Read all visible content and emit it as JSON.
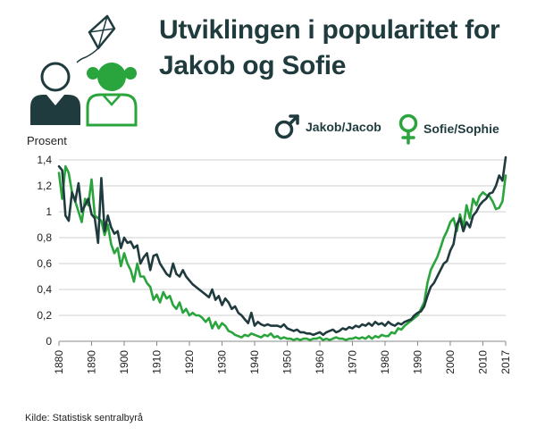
{
  "title_line1": "Utviklingen i popularitet for",
  "title_line2": "Jakob og Sofie",
  "source": "Kilde: Statistisk sentralbyrå",
  "icons": [
    "kite-icon",
    "boy-icon",
    "girl-icon",
    "male-symbol-icon",
    "female-symbol-icon"
  ],
  "colors": {
    "jakob": "#1f3b3e",
    "sofie": "#2aa43c",
    "grid": "#cfcfcf",
    "title": "#1f3b3e"
  },
  "chart_data": {
    "type": "line",
    "title": "Utviklingen i popularitet for Jakob og Sofie",
    "xlabel": "",
    "ylabel": "Prosent",
    "xlim": [
      1880,
      2017
    ],
    "ylim": [
      0,
      1.4
    ],
    "x_ticks": [
      "1880",
      "1890",
      "1900",
      "1910",
      "1920",
      "1930",
      "1940",
      "1950",
      "1960",
      "1970",
      "1980",
      "1990",
      "2000",
      "2010",
      "2017"
    ],
    "y_ticks": [
      "0",
      "0,2",
      "0,4",
      "0,6",
      "0,8",
      "1",
      "1,2",
      "1,4"
    ],
    "grid": true,
    "legend": "top-right",
    "series": [
      {
        "name": "Jakob/Jacob",
        "points": [
          [
            1880,
            1.35
          ],
          [
            1881,
            1.32
          ],
          [
            1882,
            0.97
          ],
          [
            1883,
            0.93
          ],
          [
            1884,
            1.15
          ],
          [
            1885,
            1.08
          ],
          [
            1886,
            1.22
          ],
          [
            1887,
            1.0
          ],
          [
            1888,
            1.05
          ],
          [
            1889,
            1.1
          ],
          [
            1890,
            0.98
          ],
          [
            1891,
            0.95
          ],
          [
            1892,
            0.76
          ],
          [
            1893,
            1.26
          ],
          [
            1894,
            0.85
          ],
          [
            1895,
            0.97
          ],
          [
            1896,
            0.88
          ],
          [
            1897,
            0.83
          ],
          [
            1898,
            0.85
          ],
          [
            1899,
            0.72
          ],
          [
            1900,
            0.8
          ],
          [
            1901,
            0.76
          ],
          [
            1902,
            0.77
          ],
          [
            1903,
            0.72
          ],
          [
            1904,
            0.74
          ],
          [
            1905,
            0.6
          ],
          [
            1906,
            0.65
          ],
          [
            1907,
            0.68
          ],
          [
            1908,
            0.55
          ],
          [
            1909,
            0.66
          ],
          [
            1910,
            0.67
          ],
          [
            1911,
            0.6
          ],
          [
            1912,
            0.56
          ],
          [
            1913,
            0.52
          ],
          [
            1914,
            0.5
          ],
          [
            1915,
            0.6
          ],
          [
            1916,
            0.52
          ],
          [
            1917,
            0.5
          ],
          [
            1918,
            0.55
          ],
          [
            1919,
            0.5
          ],
          [
            1920,
            0.47
          ],
          [
            1921,
            0.44
          ],
          [
            1922,
            0.42
          ],
          [
            1923,
            0.4
          ],
          [
            1924,
            0.38
          ],
          [
            1925,
            0.36
          ],
          [
            1926,
            0.34
          ],
          [
            1927,
            0.4
          ],
          [
            1928,
            0.32
          ],
          [
            1929,
            0.35
          ],
          [
            1930,
            0.28
          ],
          [
            1931,
            0.33
          ],
          [
            1932,
            0.3
          ],
          [
            1933,
            0.25
          ],
          [
            1934,
            0.27
          ],
          [
            1935,
            0.22
          ],
          [
            1936,
            0.2
          ],
          [
            1937,
            0.17
          ],
          [
            1938,
            0.14
          ],
          [
            1939,
            0.22
          ],
          [
            1940,
            0.12
          ],
          [
            1941,
            0.15
          ],
          [
            1942,
            0.13
          ],
          [
            1943,
            0.12
          ],
          [
            1944,
            0.13
          ],
          [
            1945,
            0.12
          ],
          [
            1946,
            0.12
          ],
          [
            1947,
            0.12
          ],
          [
            1948,
            0.11
          ],
          [
            1949,
            0.13
          ],
          [
            1950,
            0.1
          ],
          [
            1951,
            0.09
          ],
          [
            1952,
            0.08
          ],
          [
            1953,
            0.09
          ],
          [
            1954,
            0.07
          ],
          [
            1955,
            0.07
          ],
          [
            1956,
            0.06
          ],
          [
            1957,
            0.06
          ],
          [
            1958,
            0.05
          ],
          [
            1959,
            0.06
          ],
          [
            1960,
            0.07
          ],
          [
            1961,
            0.05
          ],
          [
            1962,
            0.07
          ],
          [
            1963,
            0.08
          ],
          [
            1964,
            0.09
          ],
          [
            1965,
            0.07
          ],
          [
            1966,
            0.08
          ],
          [
            1967,
            0.1
          ],
          [
            1968,
            0.09
          ],
          [
            1969,
            0.11
          ],
          [
            1970,
            0.1
          ],
          [
            1971,
            0.12
          ],
          [
            1972,
            0.11
          ],
          [
            1973,
            0.13
          ],
          [
            1974,
            0.12
          ],
          [
            1975,
            0.14
          ],
          [
            1976,
            0.12
          ],
          [
            1977,
            0.15
          ],
          [
            1978,
            0.13
          ],
          [
            1979,
            0.14
          ],
          [
            1980,
            0.12
          ],
          [
            1981,
            0.15
          ],
          [
            1982,
            0.13
          ],
          [
            1983,
            0.12
          ],
          [
            1984,
            0.14
          ],
          [
            1985,
            0.13
          ],
          [
            1986,
            0.15
          ],
          [
            1987,
            0.16
          ],
          [
            1988,
            0.17
          ],
          [
            1989,
            0.2
          ],
          [
            1990,
            0.22
          ],
          [
            1991,
            0.23
          ],
          [
            1992,
            0.27
          ],
          [
            1993,
            0.35
          ],
          [
            1994,
            0.42
          ],
          [
            1995,
            0.45
          ],
          [
            1996,
            0.5
          ],
          [
            1997,
            0.55
          ],
          [
            1998,
            0.6
          ],
          [
            1999,
            0.62
          ],
          [
            2000,
            0.7
          ],
          [
            2001,
            0.75
          ],
          [
            2002,
            0.9
          ],
          [
            2003,
            0.95
          ],
          [
            2004,
            0.85
          ],
          [
            2005,
            0.92
          ],
          [
            2006,
            0.88
          ],
          [
            2007,
            0.97
          ],
          [
            2008,
            1.0
          ],
          [
            2009,
            1.05
          ],
          [
            2010,
            1.08
          ],
          [
            2011,
            1.1
          ],
          [
            2012,
            1.14
          ],
          [
            2013,
            1.15
          ],
          [
            2014,
            1.2
          ],
          [
            2015,
            1.28
          ],
          [
            2016,
            1.24
          ],
          [
            2017,
            1.42
          ]
        ]
      },
      {
        "name": "Sofie/Sophie",
        "points": [
          [
            1880,
            1.3
          ],
          [
            1881,
            1.1
          ],
          [
            1882,
            1.35
          ],
          [
            1883,
            1.3
          ],
          [
            1884,
            1.15
          ],
          [
            1885,
            1.08
          ],
          [
            1886,
            1.0
          ],
          [
            1887,
            0.92
          ],
          [
            1888,
            1.1
          ],
          [
            1889,
            1.05
          ],
          [
            1890,
            1.25
          ],
          [
            1891,
            0.97
          ],
          [
            1892,
            0.95
          ],
          [
            1893,
            0.93
          ],
          [
            1894,
            0.82
          ],
          [
            1895,
            0.9
          ],
          [
            1896,
            0.75
          ],
          [
            1897,
            0.68
          ],
          [
            1898,
            0.72
          ],
          [
            1899,
            0.58
          ],
          [
            1900,
            0.68
          ],
          [
            1901,
            0.6
          ],
          [
            1902,
            0.55
          ],
          [
            1903,
            0.46
          ],
          [
            1904,
            0.6
          ],
          [
            1905,
            0.5
          ],
          [
            1906,
            0.5
          ],
          [
            1907,
            0.45
          ],
          [
            1908,
            0.42
          ],
          [
            1909,
            0.32
          ],
          [
            1910,
            0.36
          ],
          [
            1911,
            0.3
          ],
          [
            1912,
            0.38
          ],
          [
            1913,
            0.33
          ],
          [
            1914,
            0.35
          ],
          [
            1915,
            0.28
          ],
          [
            1916,
            0.25
          ],
          [
            1917,
            0.3
          ],
          [
            1918,
            0.22
          ],
          [
            1919,
            0.25
          ],
          [
            1920,
            0.2
          ],
          [
            1921,
            0.22
          ],
          [
            1922,
            0.2
          ],
          [
            1923,
            0.2
          ],
          [
            1924,
            0.18
          ],
          [
            1925,
            0.15
          ],
          [
            1926,
            0.18
          ],
          [
            1927,
            0.1
          ],
          [
            1928,
            0.15
          ],
          [
            1929,
            0.1
          ],
          [
            1930,
            0.14
          ],
          [
            1931,
            0.12
          ],
          [
            1932,
            0.08
          ],
          [
            1933,
            0.07
          ],
          [
            1934,
            0.05
          ],
          [
            1935,
            0.04
          ],
          [
            1936,
            0.03
          ],
          [
            1937,
            0.05
          ],
          [
            1938,
            0.04
          ],
          [
            1939,
            0.06
          ],
          [
            1940,
            0.05
          ],
          [
            1941,
            0.04
          ],
          [
            1942,
            0.03
          ],
          [
            1943,
            0.05
          ],
          [
            1944,
            0.04
          ],
          [
            1945,
            0.06
          ],
          [
            1946,
            0.03
          ],
          [
            1947,
            0.04
          ],
          [
            1948,
            0.02
          ],
          [
            1949,
            0.03
          ],
          [
            1950,
            0.02
          ],
          [
            1951,
            0.02
          ],
          [
            1952,
            0.01
          ],
          [
            1953,
            0.02
          ],
          [
            1954,
            0.01
          ],
          [
            1955,
            0.02
          ],
          [
            1956,
            0.02
          ],
          [
            1957,
            0.01
          ],
          [
            1958,
            0.02
          ],
          [
            1959,
            0.02
          ],
          [
            1960,
            0.03
          ],
          [
            1961,
            0.01
          ],
          [
            1962,
            0.02
          ],
          [
            1963,
            0.01
          ],
          [
            1964,
            0.02
          ],
          [
            1965,
            0.03
          ],
          [
            1966,
            0.02
          ],
          [
            1967,
            0.02
          ],
          [
            1968,
            0.01
          ],
          [
            1969,
            0.02
          ],
          [
            1970,
            0.02
          ],
          [
            1971,
            0.03
          ],
          [
            1972,
            0.02
          ],
          [
            1973,
            0.03
          ],
          [
            1974,
            0.02
          ],
          [
            1975,
            0.04
          ],
          [
            1976,
            0.02
          ],
          [
            1977,
            0.04
          ],
          [
            1978,
            0.03
          ],
          [
            1979,
            0.05
          ],
          [
            1980,
            0.04
          ],
          [
            1981,
            0.04
          ],
          [
            1982,
            0.07
          ],
          [
            1983,
            0.06
          ],
          [
            1984,
            0.1
          ],
          [
            1985,
            0.09
          ],
          [
            1986,
            0.12
          ],
          [
            1987,
            0.14
          ],
          [
            1988,
            0.16
          ],
          [
            1989,
            0.18
          ],
          [
            1990,
            0.2
          ],
          [
            1991,
            0.25
          ],
          [
            1992,
            0.3
          ],
          [
            1993,
            0.45
          ],
          [
            1994,
            0.55
          ],
          [
            1995,
            0.6
          ],
          [
            1996,
            0.65
          ],
          [
            1997,
            0.72
          ],
          [
            1998,
            0.8
          ],
          [
            1999,
            0.85
          ],
          [
            2000,
            0.92
          ],
          [
            2001,
            0.95
          ],
          [
            2002,
            0.85
          ],
          [
            2003,
            0.98
          ],
          [
            2004,
            0.88
          ],
          [
            2005,
            1.05
          ],
          [
            2006,
            0.95
          ],
          [
            2007,
            1.1
          ],
          [
            2008,
            1.05
          ],
          [
            2009,
            1.12
          ],
          [
            2010,
            1.15
          ],
          [
            2011,
            1.13
          ],
          [
            2012,
            1.12
          ],
          [
            2013,
            1.08
          ],
          [
            2014,
            1.02
          ],
          [
            2015,
            1.03
          ],
          [
            2016,
            1.08
          ],
          [
            2017,
            1.28
          ]
        ]
      }
    ]
  }
}
